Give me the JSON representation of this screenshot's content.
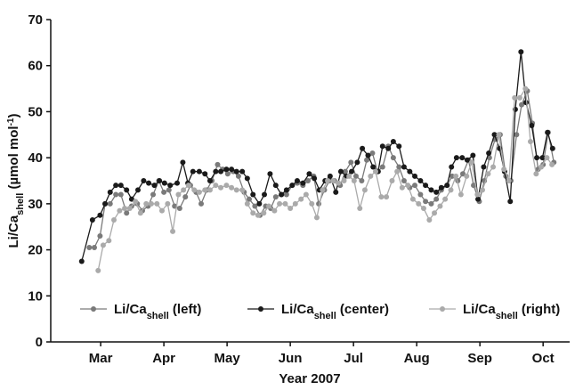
{
  "chart_data": {
    "type": "line",
    "y_label": [
      {
        "text": "Li/Ca"
      },
      {
        "text": "shell",
        "baseline": "sub"
      },
      {
        "text": " (µmol mol"
      },
      {
        "text": "-1",
        "baseline": "super"
      },
      {
        "text": ")"
      }
    ],
    "x_label": "Year 2007",
    "xlim": [
      2.21,
      10.42
    ],
    "ylim": [
      0,
      70
    ],
    "xticks": [
      {
        "value": 3,
        "label": "Mar"
      },
      {
        "value": 4,
        "label": "Apr"
      },
      {
        "value": 5,
        "label": "May"
      },
      {
        "value": 6,
        "label": "Jun"
      },
      {
        "value": 7,
        "label": "Jul"
      },
      {
        "value": 8,
        "label": "Aug"
      },
      {
        "value": 9,
        "label": "Sep"
      },
      {
        "value": 10,
        "label": "Oct"
      }
    ],
    "yticks": [
      0,
      10,
      20,
      30,
      40,
      50,
      60,
      70
    ],
    "grid": false,
    "legend": "bottom",
    "series": [
      {
        "name": [
          {
            "text": "Li/Ca"
          },
          {
            "text": "shell",
            "baseline": "sub"
          },
          {
            "text": " (left)"
          }
        ],
        "color": "#7a7a7a",
        "x": [
          2.82,
          2.9,
          2.99,
          3.07,
          3.15,
          3.24,
          3.32,
          3.41,
          3.49,
          3.58,
          3.66,
          3.75,
          3.83,
          3.92,
          4.0,
          4.08,
          4.17,
          4.25,
          4.34,
          4.42,
          4.51,
          4.59,
          4.68,
          4.76,
          4.85,
          4.93,
          5.01,
          5.1,
          5.18,
          5.27,
          5.35,
          5.44,
          5.52,
          5.61,
          5.69,
          5.77,
          5.86,
          5.94,
          6.03,
          6.11,
          6.2,
          6.28,
          6.37,
          6.45,
          6.54,
          6.62,
          6.7,
          6.79,
          6.87,
          6.96,
          7.04,
          7.13,
          7.21,
          7.3,
          7.38,
          7.46,
          7.55,
          7.63,
          7.72,
          7.8,
          7.89,
          7.97,
          8.06,
          8.14,
          8.23,
          8.31,
          8.39,
          8.48,
          8.56,
          8.65,
          8.73,
          8.82,
          8.9,
          8.99,
          9.07,
          9.15,
          9.24,
          9.32,
          9.41,
          9.49,
          9.58,
          9.66,
          9.75,
          9.83,
          9.92,
          10.0,
          10.08,
          10.17
        ],
        "values": [
          20.5,
          20.5,
          23,
          30,
          30,
          32,
          32,
          28,
          29.5,
          30,
          28.5,
          29.5,
          32,
          35,
          32.5,
          33,
          29.5,
          29,
          31.5,
          34,
          32.5,
          30,
          33,
          35,
          38.5,
          37.5,
          36.5,
          37,
          36,
          32.5,
          31,
          29.5,
          27.5,
          29.5,
          29,
          31.5,
          32,
          32,
          34,
          34.5,
          34,
          35,
          36,
          30,
          33,
          35,
          35,
          34,
          37,
          39,
          36,
          35,
          39.5,
          41,
          37,
          38,
          42.5,
          40,
          38,
          35,
          33.5,
          34,
          32,
          30.5,
          30,
          31,
          33,
          34,
          36,
          35,
          36.5,
          39.5,
          34,
          30.5,
          35,
          40,
          44,
          45,
          36,
          35,
          45,
          51.5,
          54.5,
          47.5,
          37.5,
          38.5,
          45.5,
          39
        ]
      },
      {
        "name": [
          {
            "text": "Li/Ca"
          },
          {
            "text": "shell",
            "baseline": "sub"
          },
          {
            "text": " (center)"
          }
        ],
        "color": "#1a1a1a",
        "x": [
          2.7,
          2.87,
          2.99,
          3.07,
          3.15,
          3.24,
          3.32,
          3.41,
          3.49,
          3.59,
          3.68,
          3.76,
          3.85,
          3.93,
          4.01,
          4.1,
          4.21,
          4.3,
          4.38,
          4.46,
          4.56,
          4.65,
          4.73,
          4.82,
          4.9,
          4.99,
          5.07,
          5.15,
          5.24,
          5.32,
          5.41,
          5.51,
          5.59,
          5.68,
          5.77,
          5.86,
          5.94,
          6.03,
          6.11,
          6.2,
          6.3,
          6.38,
          6.46,
          6.55,
          6.63,
          6.72,
          6.8,
          6.89,
          6.97,
          7.06,
          7.14,
          7.23,
          7.31,
          7.39,
          7.46,
          7.55,
          7.63,
          7.72,
          7.8,
          7.89,
          7.97,
          8.06,
          8.14,
          8.23,
          8.31,
          8.39,
          8.48,
          8.55,
          8.63,
          8.72,
          8.8,
          8.89,
          8.97,
          9.06,
          9.14,
          9.23,
          9.31,
          9.39,
          9.48,
          9.56,
          9.65,
          9.73,
          9.82,
          9.9,
          9.99,
          10.07,
          10.15
        ],
        "values": [
          17.5,
          26.5,
          27.5,
          30,
          32.5,
          34,
          34,
          33,
          31,
          33,
          35,
          34.5,
          34,
          35,
          34.5,
          34,
          34.5,
          39,
          34.5,
          37,
          37,
          36.5,
          35,
          37,
          37,
          37.5,
          37.5,
          37,
          37,
          35.5,
          32,
          30,
          32,
          36.5,
          34,
          32,
          33,
          34,
          35,
          34.5,
          36.5,
          35.5,
          33,
          35,
          36,
          32.5,
          37,
          36,
          37,
          39,
          42,
          40.5,
          38,
          37,
          42.5,
          42,
          43.5,
          42.5,
          38,
          37,
          36,
          35,
          34,
          33,
          32.5,
          33.5,
          34,
          38,
          40,
          40,
          39.5,
          40.5,
          31,
          38,
          41,
          45,
          42,
          37,
          30.5,
          50.5,
          63,
          52,
          47,
          40,
          40,
          45.5,
          42
        ]
      },
      {
        "name": [
          {
            "text": "Li/Ca"
          },
          {
            "text": "shell",
            "baseline": "sub"
          },
          {
            "text": " (right)"
          }
        ],
        "color": "#aaaaaa",
        "x": [
          2.96,
          3.04,
          3.13,
          3.21,
          3.3,
          3.38,
          3.46,
          3.55,
          3.63,
          3.72,
          3.8,
          3.89,
          3.97,
          4.06,
          4.14,
          4.23,
          4.31,
          4.39,
          4.48,
          4.56,
          4.65,
          4.73,
          4.82,
          4.9,
          4.99,
          5.07,
          5.15,
          5.24,
          5.32,
          5.41,
          5.49,
          5.58,
          5.66,
          5.75,
          5.83,
          5.92,
          6.0,
          6.08,
          6.17,
          6.25,
          6.34,
          6.42,
          6.51,
          6.59,
          6.68,
          6.76,
          6.85,
          6.93,
          7.01,
          7.1,
          7.18,
          7.27,
          7.35,
          7.44,
          7.52,
          7.61,
          7.69,
          7.77,
          7.86,
          7.94,
          8.03,
          8.11,
          8.2,
          8.28,
          8.37,
          8.45,
          8.54,
          8.62,
          8.7,
          8.79,
          8.87,
          8.96,
          9.04,
          9.13,
          9.21,
          9.3,
          9.38,
          9.46,
          9.55,
          9.63,
          9.72,
          9.8,
          9.89,
          9.97,
          10.06,
          10.14
        ],
        "values": [
          15.5,
          21,
          22,
          26.5,
          28.5,
          29,
          29,
          30.5,
          28,
          30,
          30,
          30,
          28.5,
          30,
          24,
          32,
          33,
          34,
          33,
          32.5,
          33,
          33,
          34,
          33.5,
          34,
          33.5,
          33,
          33,
          30,
          28,
          27.5,
          28,
          29.5,
          28.5,
          30,
          30,
          29,
          30,
          31,
          32,
          30,
          27,
          33,
          35,
          35,
          34.5,
          35,
          36,
          35,
          29,
          33,
          36,
          37,
          31.5,
          31.5,
          35,
          37,
          33.5,
          34,
          31,
          30,
          29,
          26.5,
          28,
          29.5,
          31,
          33,
          36,
          32,
          36,
          39,
          32,
          33,
          36.5,
          38,
          45,
          37.5,
          35,
          53,
          53,
          55,
          43.5,
          36.5,
          38,
          40,
          38.5
        ]
      }
    ]
  }
}
